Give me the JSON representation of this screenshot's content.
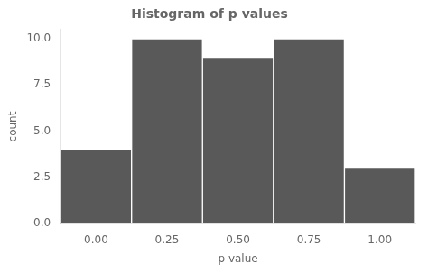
{
  "chart_data": {
    "type": "histogram",
    "title": "Histogram of p values",
    "xlabel": "p value",
    "ylabel": "count",
    "bins": [
      -0.125,
      0.125,
      0.375,
      0.625,
      0.875,
      1.125
    ],
    "values": [
      4,
      10,
      9,
      10,
      3
    ],
    "color": "#595959",
    "xlim": [
      -0.125,
      1.125
    ],
    "ylim": [
      0.0,
      10.5
    ],
    "xticks": [
      {
        "value": 0,
        "label": "0.00"
      },
      0.25,
      {
        "value": 0.5,
        "label": "0.50"
      },
      0.75,
      {
        "value": 1,
        "label": "1.00"
      }
    ],
    "yticks": [
      {
        "value": 0,
        "label": "0.0"
      },
      2.5,
      {
        "value": 5,
        "label": "5.0"
      },
      7.5,
      {
        "value": 10,
        "label": "10.0"
      }
    ],
    "grid": false
  }
}
